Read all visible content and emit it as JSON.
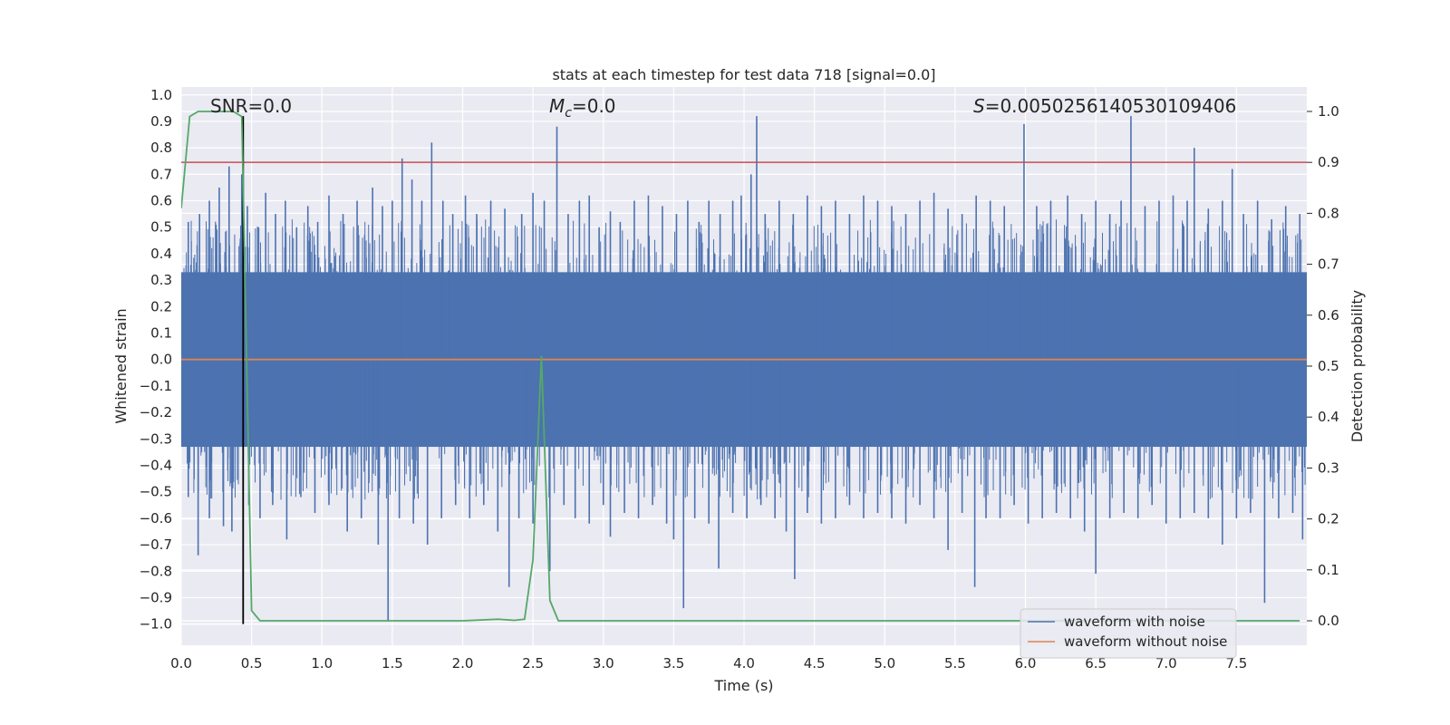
{
  "chart_data": {
    "type": "line",
    "title": "stats at each timestep for test data 718 [signal=0.0]",
    "xlabel": "Time (s)",
    "ylabel": "Whitened strain",
    "y2label": "Detection probability",
    "xlim": [
      0.0,
      8.0
    ],
    "ylim": [
      -1.08,
      1.03
    ],
    "y2lim": [
      -0.048,
      1.048
    ],
    "xticks": [
      "0.0",
      "0.5",
      "1.0",
      "1.5",
      "2.0",
      "2.5",
      "3.0",
      "3.5",
      "4.0",
      "4.5",
      "5.0",
      "5.5",
      "6.0",
      "6.5",
      "7.0",
      "7.5"
    ],
    "yticks": [
      "1.0",
      "0.9",
      "0.8",
      "0.7",
      "0.6",
      "0.5",
      "0.4",
      "0.3",
      "0.2",
      "0.1",
      "0.0",
      "−0.1",
      "−0.2",
      "−0.3",
      "−0.4",
      "−0.5",
      "−0.6",
      "−0.7",
      "−0.8",
      "−0.9",
      "−1.0"
    ],
    "y2ticks": [
      "1.0",
      "0.9",
      "0.8",
      "0.7",
      "0.6",
      "0.5",
      "0.4",
      "0.3",
      "0.2",
      "0.1",
      "0.0"
    ],
    "grid": true,
    "legend_position": "lower-right",
    "annotations": {
      "snr": "SNR=0.0",
      "mc_symbol": "M",
      "mc_sub": "c",
      "mc_value": "=0.0",
      "s_symbol": "S",
      "s_value": "=0.0050256140530109406"
    },
    "series": [
      {
        "name": "waveform with noise",
        "color": "#4c72b0",
        "axis": "left",
        "noise_band": [
          -0.33,
          0.33
        ],
        "spikes_up": [
          [
            0.05,
            0.52
          ],
          [
            0.13,
            0.55
          ],
          [
            0.2,
            0.6
          ],
          [
            0.27,
            0.65
          ],
          [
            0.34,
            0.73
          ],
          [
            0.43,
            0.7
          ],
          [
            0.47,
            0.58
          ],
          [
            0.55,
            0.5
          ],
          [
            0.6,
            0.63
          ],
          [
            0.67,
            0.55
          ],
          [
            0.74,
            0.6
          ],
          [
            0.82,
            0.5
          ],
          [
            0.9,
            0.58
          ],
          [
            0.97,
            0.52
          ],
          [
            1.05,
            0.62
          ],
          [
            1.15,
            0.55
          ],
          [
            1.25,
            0.6
          ],
          [
            1.36,
            0.65
          ],
          [
            1.43,
            0.58
          ],
          [
            1.5,
            0.6
          ],
          [
            1.57,
            0.76
          ],
          [
            1.64,
            0.68
          ],
          [
            1.71,
            0.6
          ],
          [
            1.78,
            0.82
          ],
          [
            1.86,
            0.6
          ],
          [
            1.93,
            0.55
          ],
          [
            2.02,
            0.62
          ],
          [
            2.1,
            0.55
          ],
          [
            2.2,
            0.6
          ],
          [
            2.3,
            0.57
          ],
          [
            2.42,
            0.55
          ],
          [
            2.5,
            0.63
          ],
          [
            2.58,
            0.6
          ],
          [
            2.67,
            0.88
          ],
          [
            2.75,
            0.55
          ],
          [
            2.83,
            0.6
          ],
          [
            2.9,
            0.62
          ],
          [
            2.97,
            0.5
          ],
          [
            3.05,
            0.56
          ],
          [
            3.12,
            0.52
          ],
          [
            3.22,
            0.6
          ],
          [
            3.32,
            0.62
          ],
          [
            3.42,
            0.58
          ],
          [
            3.52,
            0.55
          ],
          [
            3.6,
            0.6
          ],
          [
            3.68,
            0.52
          ],
          [
            3.75,
            0.6
          ],
          [
            3.83,
            0.55
          ],
          [
            3.92,
            0.6
          ],
          [
            3.98,
            0.62
          ],
          [
            4.05,
            0.7
          ],
          [
            4.09,
            0.92
          ],
          [
            4.15,
            0.55
          ],
          [
            4.25,
            0.6
          ],
          [
            4.35,
            0.55
          ],
          [
            4.45,
            0.62
          ],
          [
            4.55,
            0.58
          ],
          [
            4.65,
            0.6
          ],
          [
            4.75,
            0.55
          ],
          [
            4.85,
            0.62
          ],
          [
            4.95,
            0.6
          ],
          [
            5.05,
            0.58
          ],
          [
            5.15,
            0.55
          ],
          [
            5.25,
            0.6
          ],
          [
            5.35,
            0.63
          ],
          [
            5.45,
            0.57
          ],
          [
            5.55,
            0.55
          ],
          [
            5.65,
            0.62
          ],
          [
            5.75,
            0.6
          ],
          [
            5.85,
            0.58
          ],
          [
            5.99,
            0.89
          ],
          [
            6.08,
            0.58
          ],
          [
            6.18,
            0.6
          ],
          [
            6.3,
            0.62
          ],
          [
            6.4,
            0.55
          ],
          [
            6.5,
            0.6
          ],
          [
            6.6,
            0.55
          ],
          [
            6.68,
            0.6
          ],
          [
            6.75,
            0.92
          ],
          [
            6.85,
            0.58
          ],
          [
            6.95,
            0.6
          ],
          [
            7.05,
            0.62
          ],
          [
            7.15,
            0.6
          ],
          [
            7.2,
            0.8
          ],
          [
            7.3,
            0.57
          ],
          [
            7.4,
            0.6
          ],
          [
            7.47,
            0.72
          ],
          [
            7.55,
            0.55
          ],
          [
            7.65,
            0.6
          ],
          [
            7.75,
            0.53
          ],
          [
            7.85,
            0.58
          ],
          [
            7.95,
            0.55
          ]
        ],
        "spikes_down": [
          [
            0.05,
            -0.52
          ],
          [
            0.12,
            -0.74
          ],
          [
            0.2,
            -0.6
          ],
          [
            0.3,
            -0.63
          ],
          [
            0.36,
            -0.65
          ],
          [
            0.48,
            -0.55
          ],
          [
            0.56,
            -0.6
          ],
          [
            0.65,
            -0.55
          ],
          [
            0.75,
            -0.68
          ],
          [
            0.85,
            -0.52
          ],
          [
            0.95,
            -0.58
          ],
          [
            1.05,
            -0.55
          ],
          [
            1.18,
            -0.65
          ],
          [
            1.28,
            -0.6
          ],
          [
            1.4,
            -0.7
          ],
          [
            1.47,
            -0.99
          ],
          [
            1.55,
            -0.6
          ],
          [
            1.65,
            -0.62
          ],
          [
            1.75,
            -0.7
          ],
          [
            1.85,
            -0.6
          ],
          [
            1.95,
            -0.55
          ],
          [
            2.05,
            -0.6
          ],
          [
            2.15,
            -0.55
          ],
          [
            2.25,
            -0.65
          ],
          [
            2.33,
            -0.86
          ],
          [
            2.4,
            -0.6
          ],
          [
            2.5,
            -0.62
          ],
          [
            2.62,
            -0.8
          ],
          [
            2.72,
            -0.55
          ],
          [
            2.8,
            -0.6
          ],
          [
            2.9,
            -0.62
          ],
          [
            3.0,
            -0.55
          ],
          [
            3.05,
            -0.67
          ],
          [
            3.15,
            -0.58
          ],
          [
            3.25,
            -0.6
          ],
          [
            3.35,
            -0.55
          ],
          [
            3.45,
            -0.62
          ],
          [
            3.5,
            -0.68
          ],
          [
            3.57,
            -0.94
          ],
          [
            3.65,
            -0.6
          ],
          [
            3.75,
            -0.62
          ],
          [
            3.82,
            -0.79
          ],
          [
            3.92,
            -0.58
          ],
          [
            4.02,
            -0.6
          ],
          [
            4.12,
            -0.55
          ],
          [
            4.22,
            -0.6
          ],
          [
            4.3,
            -0.65
          ],
          [
            4.36,
            -0.83
          ],
          [
            4.45,
            -0.58
          ],
          [
            4.55,
            -0.62
          ],
          [
            4.65,
            -0.6
          ],
          [
            4.75,
            -0.55
          ],
          [
            4.85,
            -0.6
          ],
          [
            4.95,
            -0.58
          ],
          [
            5.05,
            -0.6
          ],
          [
            5.15,
            -0.62
          ],
          [
            5.25,
            -0.55
          ],
          [
            5.35,
            -0.6
          ],
          [
            5.45,
            -0.72
          ],
          [
            5.55,
            -0.58
          ],
          [
            5.64,
            -0.86
          ],
          [
            5.72,
            -0.6
          ],
          [
            5.82,
            -0.6
          ],
          [
            5.92,
            -0.55
          ],
          [
            6.02,
            -0.62
          ],
          [
            6.12,
            -0.6
          ],
          [
            6.22,
            -0.58
          ],
          [
            6.32,
            -0.6
          ],
          [
            6.42,
            -0.65
          ],
          [
            6.5,
            -0.81
          ],
          [
            6.6,
            -0.6
          ],
          [
            6.7,
            -0.58
          ],
          [
            6.8,
            -0.6
          ],
          [
            6.9,
            -0.55
          ],
          [
            7.0,
            -0.62
          ],
          [
            7.1,
            -0.6
          ],
          [
            7.2,
            -0.58
          ],
          [
            7.3,
            -0.6
          ],
          [
            7.4,
            -0.7
          ],
          [
            7.5,
            -0.6
          ],
          [
            7.6,
            -0.58
          ],
          [
            7.7,
            -0.92
          ],
          [
            7.8,
            -0.6
          ],
          [
            7.9,
            -0.58
          ],
          [
            7.97,
            -0.68
          ]
        ]
      },
      {
        "name": "waveform without noise",
        "color": "#dd8452",
        "axis": "left",
        "x": [
          0.0,
          8.0
        ],
        "y": [
          0.0,
          0.0
        ]
      },
      {
        "name": "",
        "color": "#55a868",
        "axis": "right",
        "x": [
          0.0,
          0.06,
          0.12,
          0.18,
          0.25,
          0.31,
          0.37,
          0.43,
          0.5,
          0.56,
          0.62,
          1.0,
          1.5,
          2.0,
          2.25,
          2.37,
          2.44,
          2.5,
          2.56,
          2.62,
          2.68,
          2.8,
          3.5,
          5.0,
          7.0,
          7.5,
          7.95
        ],
        "y": [
          0.81,
          0.99,
          1.0,
          1.0,
          1.0,
          1.0,
          1.0,
          0.99,
          0.02,
          0.0,
          0.0,
          0.0,
          0.0,
          0.0,
          0.003,
          0.001,
          0.003,
          0.12,
          0.52,
          0.04,
          0.0,
          0.0,
          0.0,
          0.0,
          0.0,
          0.0,
          0.0
        ]
      }
    ],
    "threshold": {
      "axis": "right",
      "y": 0.9,
      "color": "#c44e52"
    },
    "marker_time": {
      "x": 0.44,
      "color": "#000000"
    }
  }
}
